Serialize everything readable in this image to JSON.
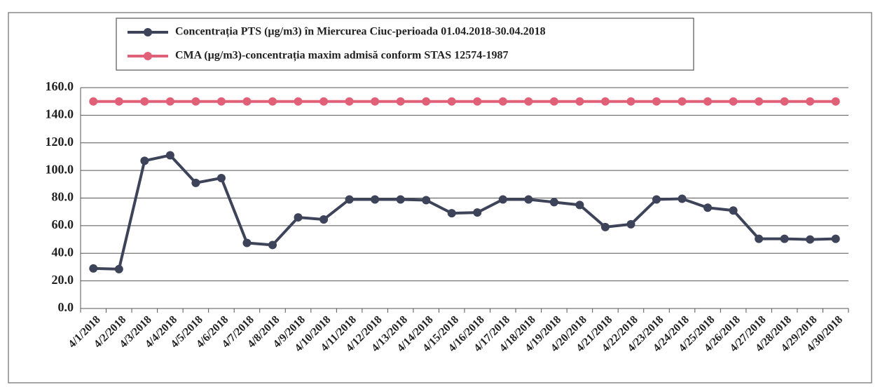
{
  "chart_data": {
    "type": "line",
    "categories": [
      "4/1/2018",
      "4/2/2018",
      "4/3/2018",
      "4/4/2018",
      "4/5/2018",
      "4/6/2018",
      "4/7/2018",
      "4/8/2018",
      "4/9/2018",
      "4/10/2018",
      "4/11/2018",
      "4/12/2018",
      "4/13/2018",
      "4/14/2018",
      "4/15/2018",
      "4/16/2018",
      "4/17/2018",
      "4/18/2018",
      "4/19/2018",
      "4/20/2018",
      "4/21/2018",
      "4/22/2018",
      "4/23/2018",
      "4/24/2018",
      "4/25/2018",
      "4/26/2018",
      "4/27/2018",
      "4/28/2018",
      "4/29/2018",
      "4/30/2018"
    ],
    "series": [
      {
        "name": "Concentrația PTS (µg/m3) în Miercurea Ciuc-perioada 01.04.2018-30.04.2018",
        "color": "#3d4358",
        "values": [
          29,
          28.5,
          107,
          111,
          91,
          94.5,
          47.5,
          46,
          66,
          64.5,
          79,
          79,
          79,
          78.5,
          69,
          69.5,
          79,
          79,
          77,
          75,
          59,
          61,
          79,
          79.5,
          73,
          71,
          50.5,
          50.5,
          50,
          50.5
        ]
      },
      {
        "name": "CMA (µg/m3)-concentrația maxim admisă conform STAS 12574-1987",
        "color": "#e06078",
        "values": [
          150,
          150,
          150,
          150,
          150,
          150,
          150,
          150,
          150,
          150,
          150,
          150,
          150,
          150,
          150,
          150,
          150,
          150,
          150,
          150,
          150,
          150,
          150,
          150,
          150,
          150,
          150,
          150,
          150,
          150
        ]
      }
    ],
    "ylim": [
      0,
      160
    ],
    "yticks": [
      {
        "value": 0,
        "label": "0.0"
      },
      {
        "value": 20,
        "label": "20.0"
      },
      {
        "value": 40,
        "label": "40.0"
      },
      {
        "value": 60,
        "label": "60.0"
      },
      {
        "value": 80,
        "label": "80.0"
      },
      {
        "value": 100,
        "label": "100.0"
      },
      {
        "value": 120,
        "label": "120.0"
      },
      {
        "value": 140,
        "label": "140.0"
      },
      {
        "value": 160,
        "label": "160.0"
      }
    ],
    "grid": true,
    "legend": "top"
  }
}
